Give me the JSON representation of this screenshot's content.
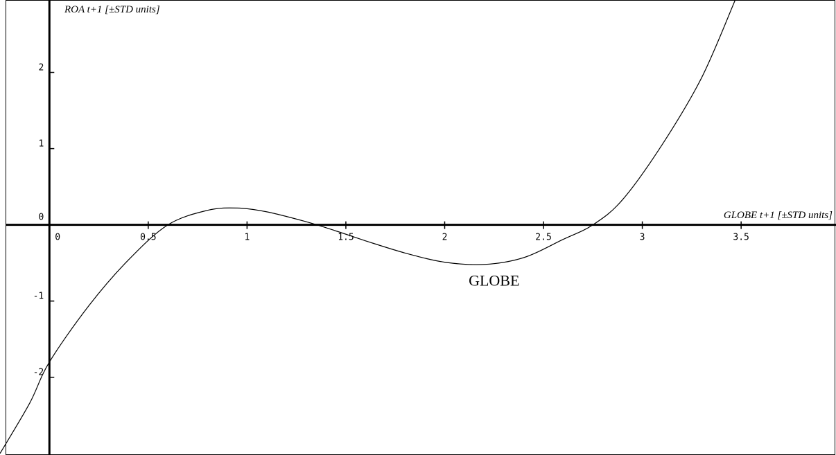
{
  "chart_data": {
    "type": "line",
    "xlabel": "GLOBE t+1 [±STD units]",
    "ylabel": "ROA t+1 [±STD units]",
    "xlim": [
      -0.25,
      3.98
    ],
    "ylim": [
      -3.02,
      2.95
    ],
    "x_ticks": [
      {
        "value": 0,
        "label": "0"
      },
      {
        "value": 0.5,
        "label": "0.5"
      },
      {
        "value": 1,
        "label": "1"
      },
      {
        "value": 1.5,
        "label": "1.5"
      },
      {
        "value": 2,
        "label": "2"
      },
      {
        "value": 2.5,
        "label": "2.5"
      },
      {
        "value": 3,
        "label": "3"
      },
      {
        "value": 3.5,
        "label": "3.5"
      }
    ],
    "y_ticks": [
      {
        "value": 2,
        "label": "2"
      },
      {
        "value": 1,
        "label": "1"
      },
      {
        "value": 0,
        "label": "0"
      },
      {
        "value": -1,
        "label": "-1"
      },
      {
        "value": -2,
        "label": "-2"
      }
    ],
    "grid": false,
    "annotation": {
      "text": "GLOBE",
      "x": 2.25,
      "y": -0.8
    },
    "series": [
      {
        "x": [
          -0.25,
          -0.1,
          0,
          0.2,
          0.4,
          0.6,
          0.8,
          0.95,
          1.1,
          1.3,
          1.45,
          1.6,
          1.8,
          2.0,
          2.2,
          2.4,
          2.6,
          2.75,
          2.9,
          3.1,
          3.3,
          3.47
        ],
        "values": [
          -3.0,
          -2.34,
          -1.8,
          -1.06,
          -0.46,
          0.0,
          0.19,
          0.22,
          0.17,
          0.04,
          -0.08,
          -0.21,
          -0.37,
          -0.49,
          -0.52,
          -0.43,
          -0.19,
          0.0,
          0.33,
          1.05,
          1.93,
          2.95
        ]
      }
    ]
  }
}
